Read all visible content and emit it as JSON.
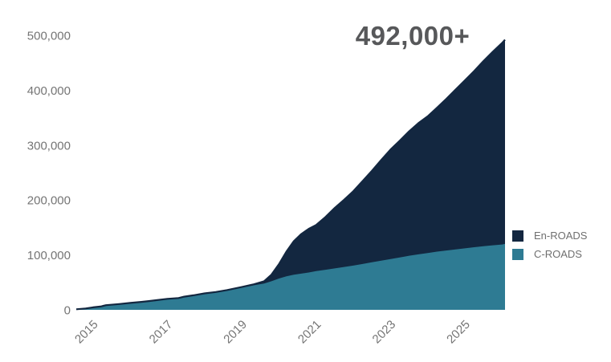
{
  "annotation": {
    "text": "492,000+",
    "color": "#57585a"
  },
  "legend": {
    "items": [
      {
        "name": "En-ROADS",
        "color": "#132740"
      },
      {
        "name": "C-ROADS",
        "color": "#2e7b93"
      }
    ]
  },
  "chart_data": {
    "type": "area",
    "stacked": true,
    "title": "",
    "annotation": "492,000+",
    "xlabel": "",
    "ylabel": "",
    "grid": false,
    "legend_position": "right",
    "xlim": [
      2014.55,
      2026.08
    ],
    "ylim": [
      0,
      500000
    ],
    "axis_label_color": "#757575",
    "xticks": {
      "values": [
        2015,
        2017,
        2019,
        2021,
        2023,
        2025
      ],
      "labels": [
        "2015",
        "2017",
        "2019",
        "2021",
        "2023",
        "2025"
      ]
    },
    "yticks": {
      "values": [
        0,
        100000,
        200000,
        300000,
        400000,
        500000
      ],
      "labels": [
        "0",
        "100,000",
        "200,000",
        "300,000",
        "400,000",
        "500,000"
      ]
    },
    "x": [
      2014.55,
      2014.8,
      2015.0,
      2015.2,
      2015.35,
      2015.45,
      2015.7,
      2016.0,
      2016.3,
      2016.5,
      2016.7,
      2017.0,
      2017.3,
      2017.45,
      2017.7,
      2018.0,
      2018.3,
      2018.6,
      2019.0,
      2019.3,
      2019.6,
      2019.8,
      2020.0,
      2020.2,
      2020.4,
      2020.6,
      2020.8,
      2021.0,
      2021.25,
      2021.5,
      2021.75,
      2022.0,
      2022.25,
      2022.5,
      2022.75,
      2023.0,
      2023.25,
      2023.5,
      2023.75,
      2024.0,
      2024.25,
      2024.5,
      2024.75,
      2025.0,
      2025.25,
      2025.5,
      2025.75,
      2026.0,
      2026.08
    ],
    "series": [
      {
        "name": "C-ROADS",
        "color": "#2e7b93",
        "values": [
          1000,
          2500,
          4500,
          6000,
          8500,
          9000,
          10500,
          12500,
          14500,
          16000,
          17500,
          20000,
          21500,
          24000,
          26500,
          30000,
          32500,
          36000,
          41000,
          44500,
          48000,
          52000,
          57000,
          61000,
          64000,
          66000,
          68000,
          70500,
          73000,
          75500,
          78000,
          80500,
          83500,
          86500,
          89500,
          92500,
          95500,
          98500,
          101000,
          103500,
          106000,
          108000,
          110000,
          112000,
          114000,
          116000,
          117500,
          119000,
          120000
        ]
      },
      {
        "name": "En-ROADS",
        "color": "#132740",
        "values": [
          0,
          0,
          0,
          0,
          0,
          0,
          0,
          0,
          0,
          0,
          0,
          0,
          0,
          0,
          0,
          0,
          0,
          0,
          500,
          1500,
          4000,
          12000,
          26000,
          45000,
          61000,
          72000,
          79500,
          84000,
          96000,
          110000,
          122500,
          135500,
          151000,
          166500,
          183500,
          199500,
          212500,
          226500,
          239000,
          249000,
          262000,
          276000,
          291000,
          306000,
          321000,
          337000,
          352500,
          367000,
          372000
        ]
      }
    ],
    "totals_end": 492000
  }
}
